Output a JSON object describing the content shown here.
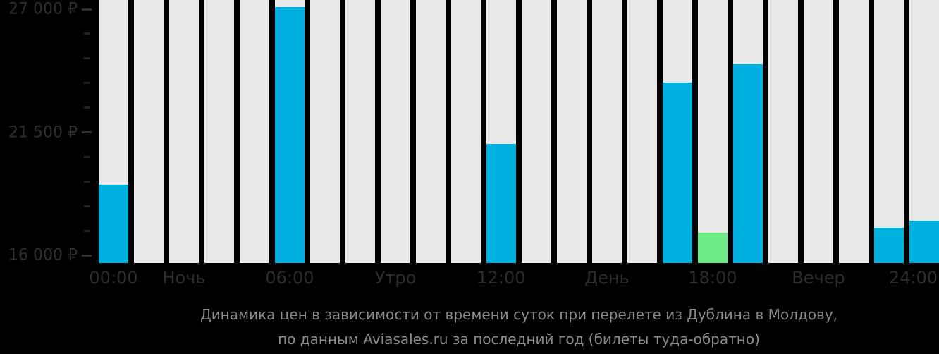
{
  "chart_data": {
    "type": "bar",
    "title": "Динамика цен в зависимости от времени суток при перелете из Дублина в Молдову,",
    "subtitle": "по данным Aviasales.ru за последний год (билеты туда-обратно)",
    "legend_position": "none",
    "grid": false,
    "y_axis": {
      "min": 16000,
      "max": 27000,
      "minor_tick_step": 1100,
      "unit": "₽",
      "major_labels": [
        {
          "value": 27000,
          "text": "27 000 ₽"
        },
        {
          "value": 21500,
          "text": "21 500 ₽"
        },
        {
          "value": 16000,
          "text": "16 000 ₽"
        }
      ]
    },
    "x_axis": {
      "labels": [
        {
          "text": "00:00",
          "bar": 1
        },
        {
          "text": "Ночь",
          "bar": 3
        },
        {
          "text": "06:00",
          "bar": 6
        },
        {
          "text": "Утро",
          "bar": 9
        },
        {
          "text": "12:00",
          "bar": 12
        },
        {
          "text": "День",
          "bar": 15
        },
        {
          "text": "18:00",
          "bar": 18
        },
        {
          "text": "Вечер",
          "bar": 21
        },
        {
          "text": "24:00",
          "bar": 24
        }
      ]
    },
    "categories": [
      "00",
      "01",
      "02",
      "03",
      "04",
      "05",
      "06",
      "07",
      "08",
      "09",
      "10",
      "11",
      "12",
      "13",
      "14",
      "15",
      "16",
      "17",
      "18",
      "19",
      "20",
      "21",
      "22",
      "23"
    ],
    "values": [
      19200,
      null,
      null,
      null,
      null,
      27000,
      null,
      null,
      null,
      null,
      null,
      21000,
      null,
      null,
      null,
      null,
      23700,
      17100,
      24500,
      null,
      null,
      null,
      17300,
      17600
    ],
    "bar_types": [
      "price",
      "empty",
      "empty",
      "empty",
      "empty",
      "price",
      "empty",
      "empty",
      "empty",
      "empty",
      "empty",
      "price",
      "empty",
      "empty",
      "empty",
      "empty",
      "price",
      "cheapest",
      "price",
      "empty",
      "empty",
      "empty",
      "price",
      "price"
    ],
    "colors": {
      "price": "#00b0e0",
      "cheapest": "#6cea85",
      "empty_column": "#e8e8e8",
      "background": "#000000",
      "axis_label": "#2f2f2f",
      "caption_text": "#8a8a8a"
    }
  }
}
